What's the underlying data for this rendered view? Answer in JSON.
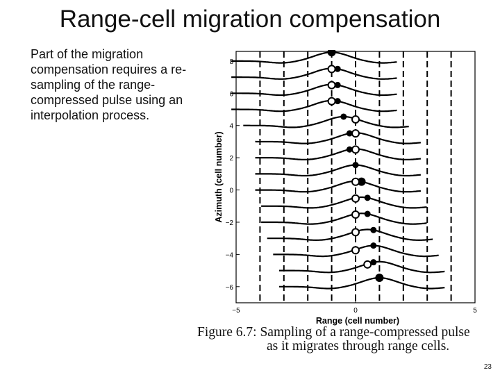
{
  "slide": {
    "title": "Range-cell migration compensation",
    "body": "Part of the migration compensation requires a re-sampling of the range-compressed pulse using an interpolation process.",
    "caption_line1": "Figure 6.7: Sampling of a range-compressed pulse",
    "caption_line2": "as it migrates through range cells.",
    "page_number": "23"
  },
  "chart_data": {
    "type": "line",
    "xlabel": "Range  (cell number)",
    "ylabel": "Azimuth  (cell number)",
    "xlim": [
      -5,
      5
    ],
    "ylim": [
      -7,
      8.6
    ],
    "xticks": [
      -5,
      0,
      5
    ],
    "yticks": [
      -6,
      -4,
      -2,
      0,
      2,
      4,
      6,
      8
    ],
    "cell_boundaries": [
      -4,
      -3,
      -2,
      -1,
      0,
      1,
      2,
      3,
      4
    ],
    "pulses": {
      "azimuth": [
        8,
        7,
        6,
        5,
        4,
        3,
        2,
        1,
        0,
        -1,
        -2,
        -3,
        -4,
        -5,
        -6
      ],
      "peak_range": [
        -1.0,
        -1.0,
        -1.0,
        -1.0,
        -0.5,
        0.0,
        0.0,
        0.0,
        0.0,
        0.25,
        0.25,
        0.5,
        0.75,
        1.0,
        1.0
      ],
      "filled_sample_range": [
        -1.0,
        -0.75,
        -0.75,
        -0.75,
        -0.5,
        -0.25,
        -0.25,
        0.0,
        0.25,
        0.5,
        0.5,
        0.75,
        0.75,
        0.75,
        1.0
      ],
      "open_sample_range": [
        null,
        -1.0,
        -1.0,
        -1.0,
        0.0,
        0.0,
        0.0,
        null,
        0.0,
        0.0,
        0.0,
        0.0,
        0.0,
        0.5,
        null
      ]
    }
  }
}
